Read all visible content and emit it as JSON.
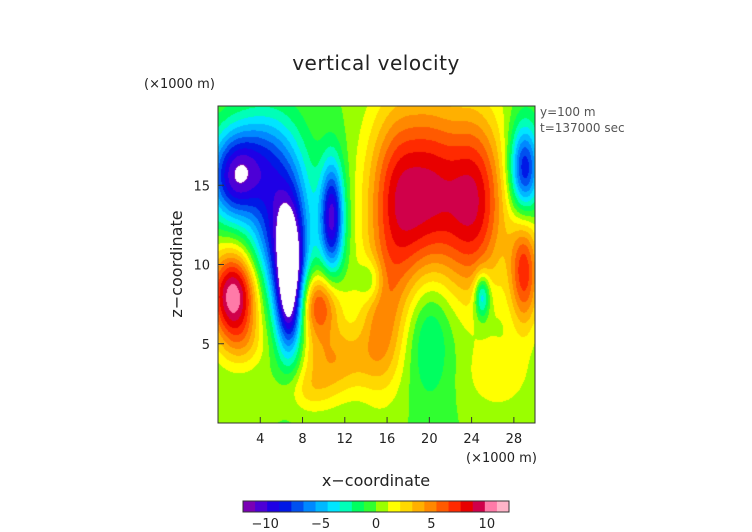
{
  "chart_data": {
    "type": "heatmap",
    "title": "vertical velocity",
    "xlabel": "x−coordinate",
    "ylabel": "z−coordinate",
    "x_unit": "(×1000 m)",
    "y_unit": "(×1000 m)",
    "annotations": [
      "y=100 m",
      "t=137000 sec"
    ],
    "xlim": [
      0,
      30
    ],
    "ylim": [
      0,
      20
    ],
    "x_ticks": [
      4,
      8,
      12,
      16,
      20,
      24,
      28
    ],
    "y_ticks": [
      5,
      10,
      15
    ],
    "x_tick_labels": [
      "4",
      "8",
      "12",
      "16",
      "20",
      "24",
      "28"
    ],
    "y_tick_labels": [
      "5",
      "10",
      "15"
    ],
    "colorbar": {
      "range": [
        -12,
        12
      ],
      "ticks": [
        -10,
        -5,
        0,
        5,
        10
      ],
      "tick_labels": [
        "−10",
        "−5",
        "0",
        "5",
        "10"
      ],
      "colors": [
        "#7a00b5",
        "#4d00d6",
        "#1e00e6",
        "#0018e6",
        "#0050f0",
        "#0088ff",
        "#00b8ff",
        "#00e5ff",
        "#00ffb8",
        "#00ff60",
        "#30ff30",
        "#9aff00",
        "#ffff00",
        "#ffd800",
        "#ffb000",
        "#ff8800",
        "#ff5a00",
        "#ff2a00",
        "#e80000",
        "#d0004a",
        "#ff7aa8",
        "#ffb4c8"
      ]
    },
    "features": [
      {
        "x": 17.5,
        "z": 14.0,
        "value": 9,
        "sx": 2.3,
        "sz": 4.2
      },
      {
        "x": 24.0,
        "z": 14.0,
        "value": 9,
        "sx": 2.2,
        "sz": 4.0
      },
      {
        "x": 20.5,
        "z": 15.0,
        "value": 3,
        "sx": 1.5,
        "sz": 4.0
      },
      {
        "x": 1.5,
        "z": 8.0,
        "value": 11,
        "sx": 1.6,
        "sz": 2.0
      },
      {
        "x": 29.0,
        "z": 9.5,
        "value": 7,
        "sx": 1.0,
        "sz": 2.5
      },
      {
        "x": 9.5,
        "z": 7.5,
        "value": 7,
        "sx": 1.4,
        "sz": 1.5
      },
      {
        "x": 11.0,
        "z": 4.0,
        "value": 4,
        "sx": 2.5,
        "sz": 1.5
      },
      {
        "x": 15.5,
        "z": 6.0,
        "value": 4,
        "sx": 1.5,
        "sz": 3.0
      },
      {
        "x": 6.8,
        "z": 8.5,
        "value": -12,
        "sx": 0.9,
        "sz": 3.0
      },
      {
        "x": 6.0,
        "z": 12.5,
        "value": -9,
        "sx": 2.0,
        "sz": 3.5
      },
      {
        "x": 10.8,
        "z": 13.0,
        "value": -10,
        "sx": 0.8,
        "sz": 2.5
      },
      {
        "x": 1.5,
        "z": 15.5,
        "value": -9,
        "sx": 1.7,
        "sz": 2.0
      },
      {
        "x": 29.0,
        "z": 16.0,
        "value": -9,
        "sx": 1.0,
        "sz": 2.0
      },
      {
        "x": 25.0,
        "z": 8.0,
        "value": -6,
        "sx": 0.5,
        "sz": 1.0
      },
      {
        "x": 20.0,
        "z": 6.0,
        "value": -3,
        "sx": 1.5,
        "sz": 3.0
      },
      {
        "x": 4.0,
        "z": 17.0,
        "value": -4,
        "sx": 2.0,
        "sz": 2.0
      },
      {
        "x": 14.5,
        "z": 9.0,
        "value": -3,
        "sx": 0.8,
        "sz": 1.0
      },
      {
        "x": 2.5,
        "z": 5.0,
        "value": 2,
        "sx": 1.5,
        "sz": 1.2
      },
      {
        "x": 8.5,
        "z": 2.0,
        "value": 2,
        "sx": 2.0,
        "sz": 1.0
      },
      {
        "x": 26.5,
        "z": 3.0,
        "value": 2,
        "sx": 2.0,
        "sz": 1.5
      }
    ]
  }
}
